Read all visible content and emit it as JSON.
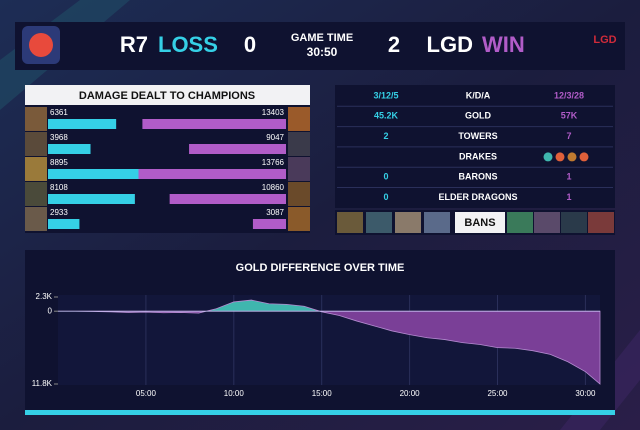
{
  "header": {
    "team1": "R7",
    "result1": "LOSS",
    "score1": 0,
    "game_time_label": "GAME TIME",
    "game_time": "30:50",
    "score2": 2,
    "team2": "LGD",
    "result2": "WIN"
  },
  "stats": {
    "rows": [
      {
        "left": "3/12/5",
        "label": "K/D/A",
        "right": "12/3/28"
      },
      {
        "left": "45.2K",
        "label": "GOLD",
        "right": "57K"
      },
      {
        "left": "2",
        "label": "TOWERS",
        "right": "7"
      },
      {
        "label": "DRAKES"
      },
      {
        "left": "0",
        "label": "BARONS",
        "right": "1"
      },
      {
        "left": "0",
        "label": "ELDER DRAGONS",
        "right": "1"
      }
    ],
    "bans_label": "BANS"
  },
  "chart_data": [
    {
      "type": "hbar_split",
      "title": "DAMAGE DEALT TO CHAMPIONS",
      "xlim": [
        0,
        14000
      ],
      "series": [
        {
          "color": "#35d0e6",
          "values": [
            6361,
            3968,
            8895,
            8108,
            2933
          ]
        },
        {
          "color": "#b15cc8",
          "values": [
            13403,
            9047,
            13766,
            10860,
            3087
          ]
        }
      ]
    },
    {
      "type": "area",
      "title": "GOLD DIFFERENCE OVER TIME",
      "x": [
        0,
        1,
        2,
        3,
        4,
        5,
        6,
        7,
        8,
        9,
        10,
        11,
        12,
        13,
        14,
        15,
        16,
        17,
        18,
        19,
        20,
        21,
        22,
        23,
        24,
        25,
        26,
        27,
        28,
        29,
        30,
        30.83
      ],
      "values": [
        0,
        0,
        -50,
        -100,
        -200,
        -150,
        -250,
        -200,
        -300,
        400,
        1500,
        1800,
        1200,
        1100,
        800,
        -100,
        -700,
        -1600,
        -2400,
        -3200,
        -3800,
        -4300,
        -4600,
        -5100,
        -5400,
        -5900,
        -6000,
        -6400,
        -7000,
        -8200,
        -9800,
        -11800
      ],
      "positive_color": "#3fb6ae",
      "negative_color": "#7a3f97",
      "xlim": [
        0,
        30.83
      ],
      "xticks": [
        {
          "value": 5,
          "label": "05:00"
        },
        {
          "value": 10,
          "label": "10:00"
        },
        {
          "value": 15,
          "label": "15:00"
        },
        {
          "value": 20,
          "label": "20:00"
        },
        {
          "value": 25,
          "label": "25:00"
        },
        {
          "value": 30,
          "label": "30:00"
        }
      ],
      "ylim": [
        -11800,
        2300
      ],
      "yticks": [
        {
          "value": 2300,
          "label": "2.3K"
        },
        0,
        {
          "value": -11800,
          "label": "11.8K"
        }
      ],
      "grid": true
    }
  ]
}
